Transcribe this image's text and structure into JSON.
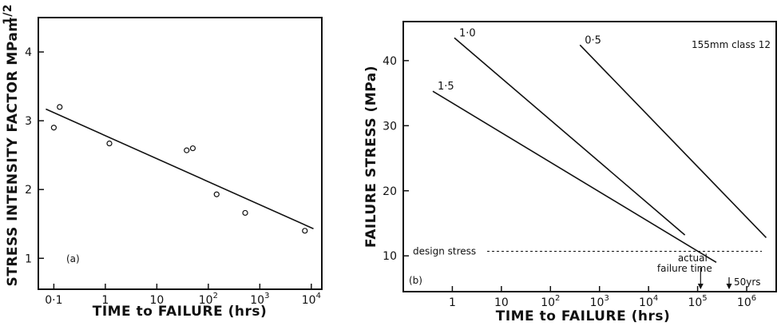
{
  "chart_data": [
    {
      "panel": "(a)",
      "type": "scatter",
      "xlabel": "TIME to FAILURE (hrs)",
      "ylabel": "STRESS INTENSITY FACTOR MPam",
      "ylabel_exponent": "1/2",
      "x_scale": "log",
      "xlim": [
        0.05,
        16000
      ],
      "ylim": [
        0.55,
        4.5
      ],
      "x_ticks": [
        {
          "value": 0.1,
          "base": "0·1",
          "exp": ""
        },
        {
          "value": 1,
          "base": "1",
          "exp": ""
        },
        {
          "value": 10,
          "base": "10",
          "exp": ""
        },
        {
          "value": 100,
          "base": "10",
          "exp": "2"
        },
        {
          "value": 1000,
          "base": "10",
          "exp": "3"
        },
        {
          "value": 10000,
          "base": "10",
          "exp": "4"
        }
      ],
      "y_ticks": [
        {
          "value": 1,
          "label": "1"
        },
        {
          "value": 2,
          "label": "2"
        },
        {
          "value": 3,
          "label": "3"
        },
        {
          "value": 4,
          "label": "4"
        }
      ],
      "points": [
        {
          "x": 0.1,
          "y": 2.9
        },
        {
          "x": 0.13,
          "y": 3.2
        },
        {
          "x": 1.2,
          "y": 2.67
        },
        {
          "x": 38,
          "y": 2.57
        },
        {
          "x": 50,
          "y": 2.6
        },
        {
          "x": 145,
          "y": 1.93
        },
        {
          "x": 520,
          "y": 1.66
        },
        {
          "x": 7500,
          "y": 1.4
        }
      ],
      "fit_line": [
        {
          "x": 0.07,
          "y": 3.17
        },
        {
          "x": 11000,
          "y": 1.43
        }
      ],
      "grid": false
    },
    {
      "panel": "(b)",
      "type": "line",
      "xlabel": "TIME to FAILURE (hrs)",
      "ylabel": "FAILURE STRESS (MPa)",
      "x_scale": "log",
      "xlim": [
        0.1,
        4000000
      ],
      "ylim": [
        4.5,
        46
      ],
      "annotation": "155mm class 12",
      "x_ticks": [
        {
          "value": 1,
          "base": "1",
          "exp": ""
        },
        {
          "value": 10,
          "base": "10",
          "exp": ""
        },
        {
          "value": 100,
          "base": "10",
          "exp": "2"
        },
        {
          "value": 1000,
          "base": "10",
          "exp": "3"
        },
        {
          "value": 10000,
          "base": "10",
          "exp": "4"
        },
        {
          "value": 100000,
          "base": "10",
          "exp": "5"
        },
        {
          "value": 1000000,
          "base": "10",
          "exp": "6"
        }
      ],
      "y_ticks": [
        {
          "value": 10,
          "label": "10"
        },
        {
          "value": 20,
          "label": "20"
        },
        {
          "value": 30,
          "label": "30"
        },
        {
          "value": 40,
          "label": "40"
        }
      ],
      "series": [
        {
          "name": "1·0",
          "points": [
            {
              "x": 1.1,
              "y": 43.5
            },
            {
              "x": 55000,
              "y": 13.2
            }
          ]
        },
        {
          "name": "0·5",
          "points": [
            {
              "x": 400,
              "y": 42.4
            },
            {
              "x": 2500000,
              "y": 12.8
            }
          ]
        },
        {
          "name": "1·5",
          "points": [
            {
              "x": 0.4,
              "y": 35.3
            },
            {
              "x": 240000,
              "y": 9.0
            }
          ]
        }
      ],
      "design_stress": {
        "label": "design stress",
        "y": 10.7
      },
      "markers": [
        {
          "label": "actual failure time",
          "x": 115000
        },
        {
          "label": "50yrs",
          "x": 438000
        }
      ],
      "grid": false
    }
  ]
}
